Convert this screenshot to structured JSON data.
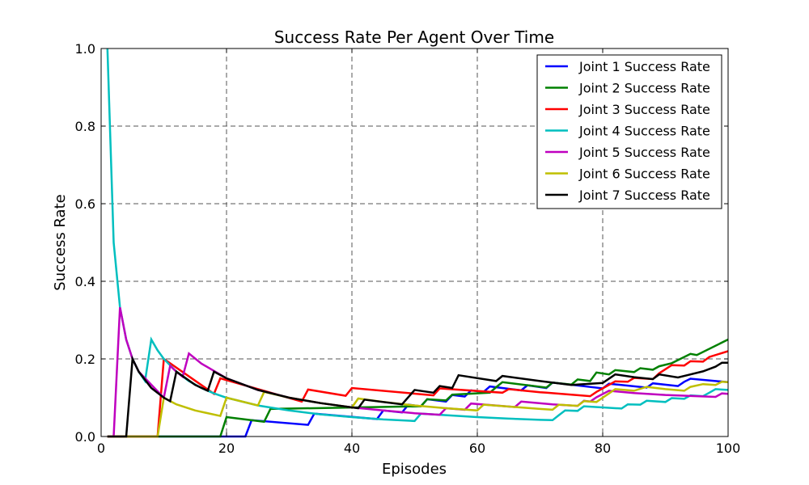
{
  "chart_data": {
    "type": "line",
    "title": "Success Rate Per Agent Over Time",
    "xlabel": "Episodes",
    "ylabel": "Success Rate",
    "xlim": [
      0,
      100
    ],
    "ylim": [
      0.0,
      1.0
    ],
    "xticks": [
      "0",
      "20",
      "40",
      "60",
      "80",
      "100"
    ],
    "yticks": [
      "0.0",
      "0.2",
      "0.4",
      "0.6",
      "0.8",
      "1.0"
    ],
    "grid": true,
    "legend_position": "top-right",
    "series": [
      {
        "name": "Joint 1 Success Rate",
        "color": "#0000ff",
        "points": [
          [
            1,
            0
          ],
          [
            23,
            0
          ],
          [
            24,
            0.042
          ],
          [
            33,
            0.03
          ],
          [
            34,
            0.059
          ],
          [
            44,
            0.045
          ],
          [
            45,
            0.067
          ],
          [
            48,
            0.062
          ],
          [
            49,
            0.082
          ],
          [
            51,
            0.078
          ],
          [
            52,
            0.096
          ],
          [
            55,
            0.09
          ],
          [
            56,
            0.107
          ],
          [
            58,
            0.103
          ],
          [
            59,
            0.119
          ],
          [
            61,
            0.115
          ],
          [
            62,
            0.129
          ],
          [
            67,
            0.119
          ],
          [
            68,
            0.132
          ],
          [
            71,
            0.125
          ],
          [
            72,
            0.139
          ],
          [
            80,
            0.124
          ],
          [
            81,
            0.136
          ],
          [
            87,
            0.126
          ],
          [
            88,
            0.137
          ],
          [
            92,
            0.13
          ],
          [
            93,
            0.141
          ],
          [
            94,
            0.149
          ],
          [
            100,
            0.14
          ]
        ]
      },
      {
        "name": "Joint 2 Success Rate",
        "color": "#008000",
        "points": [
          [
            1,
            0
          ],
          [
            19,
            0
          ],
          [
            20,
            0.05
          ],
          [
            26,
            0.038
          ],
          [
            27,
            0.071
          ],
          [
            51,
            0.078
          ],
          [
            52,
            0.096
          ],
          [
            55,
            0.093
          ],
          [
            56,
            0.108
          ],
          [
            62,
            0.113
          ],
          [
            63,
            0.127
          ],
          [
            64,
            0.14
          ],
          [
            71,
            0.126
          ],
          [
            72,
            0.139
          ],
          [
            75,
            0.134
          ],
          [
            76,
            0.147
          ],
          [
            78,
            0.143
          ],
          [
            79,
            0.165
          ],
          [
            81,
            0.16
          ],
          [
            82,
            0.171
          ],
          [
            85,
            0.166
          ],
          [
            86,
            0.176
          ],
          [
            88,
            0.172
          ],
          [
            89,
            0.181
          ],
          [
            91,
            0.189
          ],
          [
            93,
            0.205
          ],
          [
            94,
            0.213
          ],
          [
            95,
            0.21
          ],
          [
            100,
            0.25
          ]
        ]
      },
      {
        "name": "Joint 3 Success Rate",
        "color": "#ff0000",
        "points": [
          [
            1,
            0
          ],
          [
            9,
            0
          ],
          [
            10,
            0.2
          ],
          [
            18,
            0.11
          ],
          [
            19,
            0.15
          ],
          [
            32,
            0.09
          ],
          [
            33,
            0.121
          ],
          [
            39,
            0.105
          ],
          [
            40,
            0.125
          ],
          [
            53,
            0.106
          ],
          [
            54,
            0.124
          ],
          [
            64,
            0.113
          ],
          [
            65,
            0.122
          ],
          [
            70,
            0.114
          ],
          [
            71,
            0.113
          ],
          [
            78,
            0.104
          ],
          [
            79,
            0.115
          ],
          [
            82,
            0.142
          ],
          [
            84,
            0.141
          ],
          [
            85,
            0.151
          ],
          [
            88,
            0.148
          ],
          [
            89,
            0.163
          ],
          [
            91,
            0.184
          ],
          [
            93,
            0.183
          ],
          [
            94,
            0.194
          ],
          [
            96,
            0.193
          ],
          [
            97,
            0.205
          ],
          [
            100,
            0.22
          ]
        ]
      },
      {
        "name": "Joint 4 Success Rate",
        "color": "#00bfbf",
        "points": [
          [
            1,
            1.0
          ],
          [
            2,
            0.5
          ],
          [
            3,
            0.333
          ],
          [
            4,
            0.25
          ],
          [
            5,
            0.2
          ],
          [
            6,
            0.167
          ],
          [
            7,
            0.143
          ],
          [
            8,
            0.25
          ],
          [
            9,
            0.222
          ],
          [
            10,
            0.2
          ],
          [
            12,
            0.167
          ],
          [
            14,
            0.143
          ],
          [
            16,
            0.125
          ],
          [
            18,
            0.111
          ],
          [
            20,
            0.1
          ],
          [
            25,
            0.08
          ],
          [
            30,
            0.067
          ],
          [
            35,
            0.057
          ],
          [
            40,
            0.05
          ],
          [
            45,
            0.044
          ],
          [
            50,
            0.04
          ],
          [
            51,
            0.059
          ],
          [
            55,
            0.055
          ],
          [
            60,
            0.05
          ],
          [
            65,
            0.046
          ],
          [
            70,
            0.043
          ],
          [
            72,
            0.042
          ],
          [
            73,
            0.055
          ],
          [
            74,
            0.067
          ],
          [
            76,
            0.066
          ],
          [
            77,
            0.078
          ],
          [
            83,
            0.072
          ],
          [
            84,
            0.083
          ],
          [
            86,
            0.082
          ],
          [
            87,
            0.092
          ],
          [
            90,
            0.089
          ],
          [
            91,
            0.099
          ],
          [
            93,
            0.097
          ],
          [
            94,
            0.106
          ],
          [
            96,
            0.104
          ],
          [
            97,
            0.113
          ],
          [
            98,
            0.122
          ],
          [
            100,
            0.12
          ]
        ]
      },
      {
        "name": "Joint 5 Success Rate",
        "color": "#bf00bf",
        "points": [
          [
            1,
            0
          ],
          [
            2,
            0
          ],
          [
            3,
            0.333
          ],
          [
            4,
            0.25
          ],
          [
            5,
            0.2
          ],
          [
            6,
            0.167
          ],
          [
            10,
            0.1
          ],
          [
            11,
            0.182
          ],
          [
            12,
            0.167
          ],
          [
            13,
            0.154
          ],
          [
            14,
            0.214
          ],
          [
            16,
            0.188
          ],
          [
            20,
            0.15
          ],
          [
            25,
            0.12
          ],
          [
            30,
            0.1
          ],
          [
            35,
            0.086
          ],
          [
            40,
            0.075
          ],
          [
            45,
            0.067
          ],
          [
            50,
            0.06
          ],
          [
            54,
            0.056
          ],
          [
            55,
            0.073
          ],
          [
            58,
            0.069
          ],
          [
            59,
            0.085
          ],
          [
            66,
            0.076
          ],
          [
            67,
            0.09
          ],
          [
            72,
            0.083
          ],
          [
            76,
            0.079
          ],
          [
            77,
            0.092
          ],
          [
            78,
            0.09
          ],
          [
            79,
            0.101
          ],
          [
            81,
            0.118
          ],
          [
            85,
            0.112
          ],
          [
            90,
            0.107
          ],
          [
            95,
            0.104
          ],
          [
            98,
            0.102
          ],
          [
            99,
            0.111
          ],
          [
            100,
            0.11
          ]
        ]
      },
      {
        "name": "Joint 6 Success Rate",
        "color": "#bfbf00",
        "points": [
          [
            1,
            0
          ],
          [
            8,
            0
          ],
          [
            9,
            0
          ],
          [
            10,
            0.1
          ],
          [
            12,
            0.083
          ],
          [
            15,
            0.067
          ],
          [
            19,
            0.053
          ],
          [
            20,
            0.1
          ],
          [
            25,
            0.08
          ],
          [
            26,
            0.115
          ],
          [
            30,
            0.1
          ],
          [
            35,
            0.086
          ],
          [
            40,
            0.075
          ],
          [
            41,
            0.098
          ],
          [
            45,
            0.089
          ],
          [
            50,
            0.08
          ],
          [
            55,
            0.073
          ],
          [
            60,
            0.067
          ],
          [
            61,
            0.082
          ],
          [
            66,
            0.076
          ],
          [
            70,
            0.071
          ],
          [
            72,
            0.069
          ],
          [
            73,
            0.082
          ],
          [
            76,
            0.079
          ],
          [
            77,
            0.091
          ],
          [
            79,
            0.089
          ],
          [
            80,
            0.1
          ],
          [
            81,
            0.111
          ],
          [
            82,
            0.122
          ],
          [
            85,
            0.118
          ],
          [
            87,
            0.128
          ],
          [
            90,
            0.122
          ],
          [
            93,
            0.118
          ],
          [
            94,
            0.128
          ],
          [
            96,
            0.135
          ],
          [
            98,
            0.133
          ],
          [
            99,
            0.141
          ],
          [
            100,
            0.14
          ]
        ]
      },
      {
        "name": "Joint 7 Success Rate",
        "color": "#000000",
        "points": [
          [
            1,
            0
          ],
          [
            3,
            0
          ],
          [
            4,
            0
          ],
          [
            5,
            0.2
          ],
          [
            6,
            0.167
          ],
          [
            8,
            0.125
          ],
          [
            10,
            0.1
          ],
          [
            11,
            0.091
          ],
          [
            12,
            0.167
          ],
          [
            15,
            0.133
          ],
          [
            17,
            0.118
          ],
          [
            18,
            0.167
          ],
          [
            20,
            0.15
          ],
          [
            25,
            0.12
          ],
          [
            30,
            0.1
          ],
          [
            35,
            0.086
          ],
          [
            40,
            0.075
          ],
          [
            41,
            0.073
          ],
          [
            42,
            0.095
          ],
          [
            48,
            0.083
          ],
          [
            50,
            0.12
          ],
          [
            53,
            0.113
          ],
          [
            54,
            0.13
          ],
          [
            56,
            0.125
          ],
          [
            57,
            0.158
          ],
          [
            63,
            0.143
          ],
          [
            64,
            0.156
          ],
          [
            70,
            0.143
          ],
          [
            75,
            0.133
          ],
          [
            80,
            0.138
          ],
          [
            82,
            0.16
          ],
          [
            85,
            0.153
          ],
          [
            88,
            0.148
          ],
          [
            89,
            0.16
          ],
          [
            92,
            0.152
          ],
          [
            94,
            0.16
          ],
          [
            96,
            0.168
          ],
          [
            98,
            0.18
          ],
          [
            99,
            0.19
          ],
          [
            100,
            0.19
          ]
        ]
      }
    ]
  }
}
